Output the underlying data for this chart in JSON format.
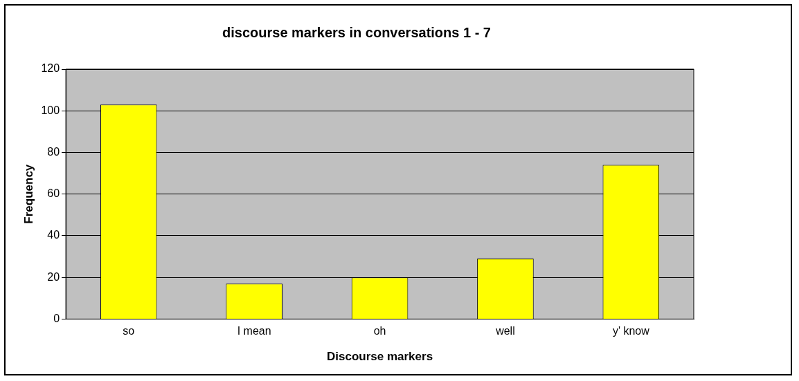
{
  "chart_data": {
    "type": "bar",
    "title": "discourse markers in conversations 1 - 7",
    "xlabel": "Discourse markers",
    "ylabel": "Frequency",
    "categories": [
      "so",
      "I mean",
      "oh",
      "well",
      "y' know"
    ],
    "values": [
      103,
      17,
      20,
      29,
      74
    ],
    "color": "#ffff00",
    "ylim": [
      0,
      120
    ],
    "yticks": [
      0,
      20,
      40,
      60,
      80,
      100,
      120
    ],
    "grid": "y",
    "legend": false
  }
}
